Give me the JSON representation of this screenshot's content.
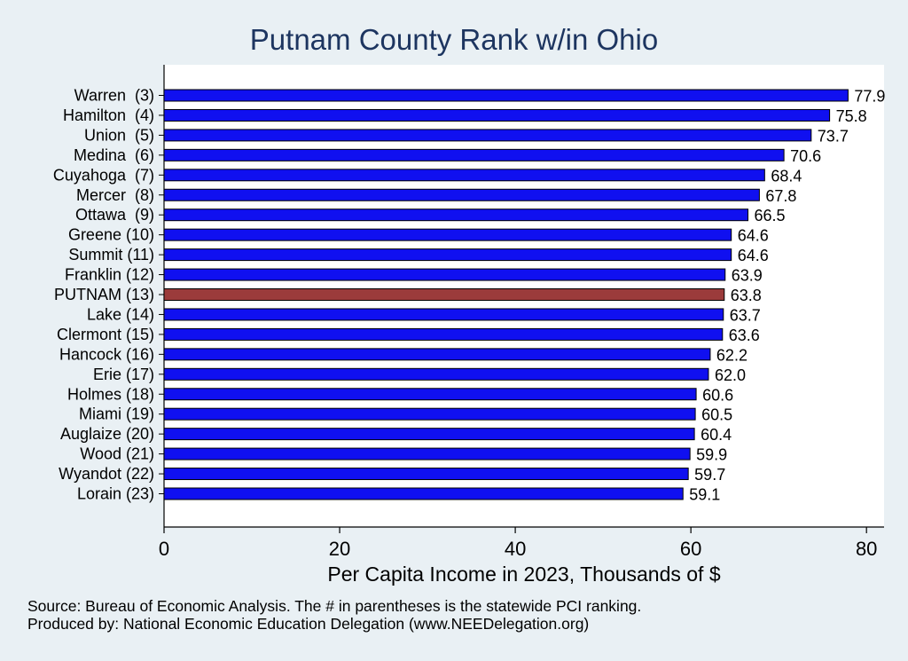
{
  "title": "Putnam County Rank w/in Ohio",
  "xlabel": "Per Capita Income in 2023, Thousands of $",
  "notes": {
    "source": "Source: Bureau of Economic Analysis. The # in parentheses is the statewide PCI ranking.",
    "producer": "Produced by: National Economic Education Delegation (www.NEEDelegation.org)"
  },
  "colors": {
    "bar": "#1010f0",
    "highlight": "#9b3b3b",
    "background": "#e9f0f4",
    "plot": "#ffffff",
    "title": "#1d3560"
  },
  "chart_data": {
    "type": "bar",
    "orientation": "horizontal",
    "title": "Putnam County Rank w/in Ohio",
    "xlabel": "Per Capita Income in 2023, Thousands of $",
    "ylabel": "",
    "xlim": [
      0,
      82
    ],
    "xticks": [
      0,
      20,
      40,
      60,
      80
    ],
    "grid": false,
    "highlight": "PUTNAM (13)",
    "categories": [
      "Warren  (3)",
      "Hamilton  (4)",
      "Union  (5)",
      "Medina  (6)",
      "Cuyahoga  (7)",
      "Mercer  (8)",
      "Ottawa  (9)",
      "Greene (10)",
      "Summit (11)",
      "Franklin (12)",
      "PUTNAM (13)",
      "Lake (14)",
      "Clermont (15)",
      "Hancock (16)",
      "Erie (17)",
      "Holmes (18)",
      "Miami (19)",
      "Auglaize (20)",
      "Wood (21)",
      "Wyandot (22)",
      "Lorain (23)"
    ],
    "values": [
      77.9,
      75.8,
      73.7,
      70.6,
      68.4,
      67.8,
      66.5,
      64.6,
      64.6,
      63.9,
      63.8,
      63.7,
      63.6,
      62.2,
      62.0,
      60.6,
      60.5,
      60.4,
      59.9,
      59.7,
      59.1
    ],
    "value_labels": [
      "77.9",
      "75.8",
      "73.7",
      "70.6",
      "68.4",
      "67.8",
      "66.5",
      "64.6",
      "64.6",
      "63.9",
      "63.8",
      "63.7",
      "63.6",
      "62.2",
      "62.0",
      "60.6",
      "60.5",
      "60.4",
      "59.9",
      "59.7",
      "59.1"
    ]
  }
}
